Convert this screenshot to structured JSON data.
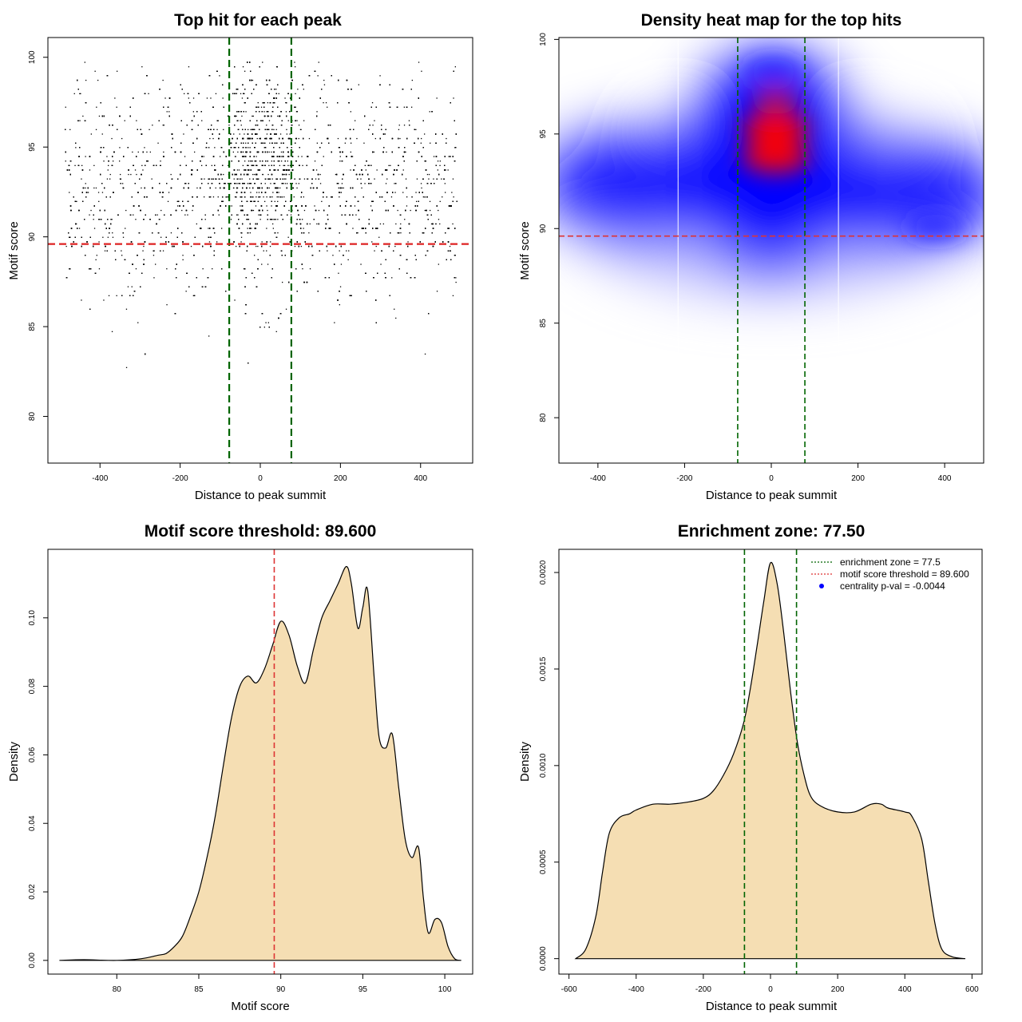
{
  "chart_data": [
    {
      "id": "scatter",
      "type": "scatter",
      "title": "Top hit for each peak",
      "xlabel": "Distance to peak summit",
      "ylabel": "Motif score",
      "xlim": [
        -530,
        530
      ],
      "ylim": [
        77.4,
        101.1
      ],
      "xticks": [
        -400,
        -200,
        0,
        200,
        400
      ],
      "xtick_labels": [
        "-400",
        "-200",
        "0",
        "200",
        "400"
      ],
      "yticks": [
        80,
        85,
        90,
        95,
        100
      ],
      "ytick_labels": [
        "80",
        "85",
        "90",
        "95",
        "100"
      ],
      "vlines": [
        -77.5,
        77.5
      ],
      "hline": 89.6,
      "vline_color": "#006400",
      "hline_color": "#dd2222",
      "point_color": "#000000",
      "n_points": 9000,
      "x_range": [
        -490,
        490
      ],
      "score_peaks": [
        90.2,
        92.6,
        93.8,
        95.2
      ]
    },
    {
      "id": "heatmap",
      "type": "heatmap",
      "title": "Density heat map for the top hits",
      "xlabel": "Distance to peak summit",
      "ylabel": "Motif score",
      "xlim": [
        -490,
        490
      ],
      "ylim": [
        77.6,
        100.1
      ],
      "xticks": [
        -400,
        -200,
        0,
        200,
        400
      ],
      "xtick_labels": [
        "-400",
        "-200",
        "0",
        "200",
        "400"
      ],
      "yticks": [
        80,
        85,
        90,
        95,
        100
      ],
      "ytick_labels": [
        "80",
        "85",
        "90",
        "95",
        "100"
      ],
      "vlines": [
        -77.5,
        77.5
      ],
      "white_lines": [
        -215,
        155
      ],
      "hline": 89.6,
      "color_low": "#ffffff",
      "color_mid": "#0000ff",
      "color_high": "#ff0000",
      "hotspots": [
        {
          "x": 10,
          "y": 95.3,
          "level": "high"
        },
        {
          "x": 10,
          "y": 93.8,
          "level": "high"
        },
        {
          "x": 5,
          "y": 98.3,
          "level": "mid"
        },
        {
          "x": 380,
          "y": 90.1,
          "level": "mid"
        }
      ]
    },
    {
      "id": "scoredens",
      "type": "area",
      "title": "Motif score threshold: 89.600",
      "xlabel": "Motif score",
      "ylabel": "Density",
      "xlim": [
        75.8,
        101.7
      ],
      "ylim": [
        -0.004,
        0.12
      ],
      "xticks": [
        80,
        85,
        90,
        95,
        100
      ],
      "xtick_labels": [
        "80",
        "85",
        "90",
        "95",
        "100"
      ],
      "yticks": [
        0,
        0.02,
        0.04,
        0.06,
        0.08,
        0.1
      ],
      "ytick_labels": [
        "0.00",
        "0.02",
        "0.04",
        "0.06",
        "0.08",
        "0.10"
      ],
      "x": [
        76.5,
        78.0,
        80.0,
        81.5,
        82.5,
        83.0,
        83.5,
        84.0,
        84.5,
        85.0,
        85.5,
        86.0,
        86.5,
        87.0,
        87.5,
        88.0,
        88.5,
        89.0,
        89.5,
        90.0,
        90.5,
        91.0,
        91.5,
        92.0,
        92.5,
        93.0,
        93.5,
        94.0,
        94.3,
        94.7,
        95.0,
        95.3,
        95.7,
        96.0,
        96.4,
        96.8,
        97.2,
        97.6,
        98.0,
        98.4,
        98.7,
        99.0,
        99.4,
        99.8,
        100.2,
        100.6,
        101.0
      ],
      "y": [
        0.0,
        0.0002,
        0.0,
        0.0005,
        0.0015,
        0.002,
        0.004,
        0.007,
        0.013,
        0.02,
        0.03,
        0.042,
        0.057,
        0.071,
        0.08,
        0.083,
        0.081,
        0.085,
        0.092,
        0.099,
        0.095,
        0.086,
        0.081,
        0.091,
        0.1,
        0.105,
        0.11,
        0.115,
        0.11,
        0.097,
        0.103,
        0.108,
        0.082,
        0.065,
        0.062,
        0.066,
        0.05,
        0.035,
        0.03,
        0.033,
        0.018,
        0.008,
        0.012,
        0.011,
        0.004,
        0.0005,
        0.0
      ],
      "vline": 89.6,
      "vline_color": "#dd3333",
      "fill_color": "#f5deb3"
    },
    {
      "id": "distdens",
      "type": "area",
      "title": "Enrichment zone: 77.50",
      "xlabel": "Distance to peak summit",
      "ylabel": "Density",
      "xlim": [
        -630,
        630
      ],
      "ylim": [
        -8e-05,
        0.00212
      ],
      "xticks": [
        -600,
        -400,
        -200,
        0,
        200,
        400,
        600
      ],
      "xtick_labels": [
        "-600",
        "-400",
        "-200",
        "0",
        "200",
        "400",
        "600"
      ],
      "yticks": [
        0,
        0.0005,
        0.001,
        0.0015,
        0.002
      ],
      "ytick_labels": [
        "0.0000",
        "0.0005",
        "0.0010",
        "0.0015",
        "0.0020"
      ],
      "x": [
        -580,
        -550,
        -520,
        -500,
        -480,
        -450,
        -420,
        -400,
        -350,
        -300,
        -250,
        -200,
        -170,
        -140,
        -110,
        -80,
        -60,
        -40,
        -20,
        0,
        20,
        40,
        60,
        80,
        100,
        120,
        150,
        200,
        250,
        300,
        330,
        350,
        400,
        420,
        450,
        470,
        490,
        510,
        540,
        580
      ],
      "y": [
        0.0,
        5e-05,
        0.00022,
        0.00045,
        0.00065,
        0.00073,
        0.00075,
        0.00077,
        0.0008,
        0.0008,
        0.00081,
        0.00083,
        0.00087,
        0.00095,
        0.00106,
        0.00122,
        0.0014,
        0.00162,
        0.00185,
        0.00205,
        0.00194,
        0.00168,
        0.00138,
        0.00112,
        0.00095,
        0.00084,
        0.00079,
        0.00076,
        0.00076,
        0.0008,
        0.0008,
        0.00078,
        0.00076,
        0.00074,
        0.00062,
        0.0004,
        0.00018,
        5e-05,
        1e-05,
        0.0
      ],
      "vlines": [
        -77.5,
        77.5
      ],
      "vline_color": "#006400",
      "fill_color": "#f5deb3",
      "legend_position": "top-right",
      "legend": [
        {
          "label": "enrichment zone = 77.5",
          "style": "dotted-line",
          "color": "#006400"
        },
        {
          "label": "motif score threshold = 89.600",
          "style": "dotted-line",
          "color": "#dd3333"
        },
        {
          "label": "centrality p-val = -0.0044",
          "style": "point",
          "color": "#0000ff"
        }
      ]
    }
  ]
}
